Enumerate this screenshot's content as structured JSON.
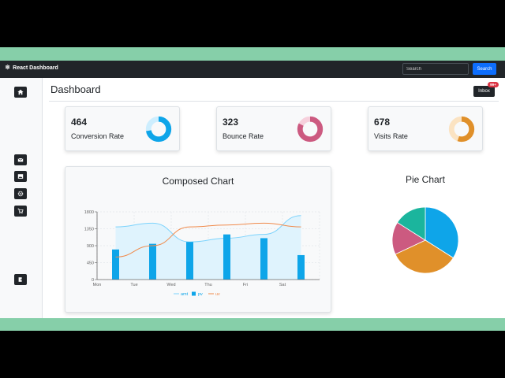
{
  "navbar": {
    "brand": "React Dashboard",
    "brand_icon": "atom-icon",
    "search_placeholder": "Search",
    "search_button": "Search"
  },
  "sidebar": {
    "items": [
      {
        "name": "home-icon"
      },
      {
        "name": "mail-icon"
      },
      {
        "name": "image-icon"
      },
      {
        "name": "gear-icon"
      },
      {
        "name": "cart-icon"
      },
      {
        "name": "exit-icon"
      }
    ]
  },
  "page": {
    "title": "Dashboard",
    "inbox_label": "Inbox",
    "inbox_badge": "99+"
  },
  "cards": [
    {
      "value": "464",
      "label": "Conversion Rate",
      "fraction": 0.72,
      "color": "#0ea5e9",
      "track": "#cdeefe"
    },
    {
      "value": "323",
      "label": "Bounce Rate",
      "fraction": 0.82,
      "color": "#cc5a80",
      "track": "#f6d0dc"
    },
    {
      "value": "678",
      "label": "Visits Rate",
      "fraction": 0.55,
      "color": "#e0902a",
      "track": "#fbe3c2"
    }
  ],
  "composed_chart": {
    "title": "Composed Chart",
    "chart_data": {
      "type": "composed",
      "categories": [
        "Mon",
        "Tue",
        "Wed",
        "Thu",
        "Fri",
        "Sat"
      ],
      "yticks": [
        "0",
        "450",
        "900",
        "1350",
        "1800"
      ],
      "ylim": [
        0,
        1800
      ],
      "series": [
        {
          "name": "amt",
          "kind": "area",
          "color": "#0ea5e9",
          "values": [
            1400,
            1500,
            1000,
            1100,
            1200,
            1700
          ]
        },
        {
          "name": "pv",
          "kind": "bar",
          "color": "#0ea5e9",
          "values": [
            800,
            950,
            1000,
            1200,
            1100,
            650
          ]
        },
        {
          "name": "uv",
          "kind": "line",
          "color": "#f08a4b",
          "values": [
            600,
            900,
            1400,
            1450,
            1500,
            1400
          ]
        }
      ]
    }
  },
  "pie_chart": {
    "title": "Pie Chart",
    "chart_data": {
      "type": "pie",
      "slices": [
        {
          "value": 34,
          "color": "#0ea5e9"
        },
        {
          "value": 34,
          "color": "#e0902a"
        },
        {
          "value": 16,
          "color": "#cc5a80"
        },
        {
          "value": 16,
          "color": "#1bb59d"
        }
      ]
    }
  }
}
